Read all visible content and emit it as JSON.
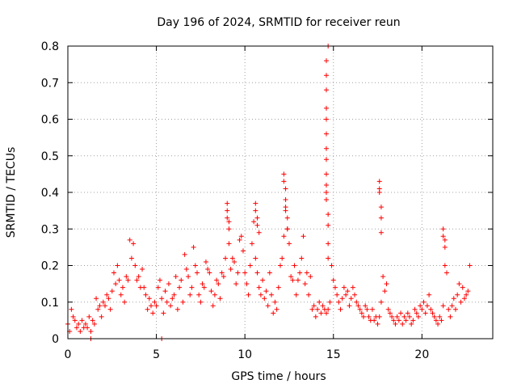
{
  "chart_data": {
    "type": "scatter",
    "title": "Day 196 of 2024, SRMTID for receiver reun",
    "xlabel": "GPS time / hours",
    "ylabel": "SRMTID / TECUs",
    "xlim": [
      0,
      24
    ],
    "ylim": [
      0,
      0.8
    ],
    "x_ticks": [
      0,
      5,
      10,
      15,
      20
    ],
    "x_tick_labels": [
      "0",
      "5",
      "10",
      "15",
      "20"
    ],
    "y_ticks": [
      0,
      0.1,
      0.2,
      0.3,
      0.4,
      0.5,
      0.6,
      0.7,
      0.8
    ],
    "y_tick_labels": [
      "0",
      "0.1",
      "0.2",
      "0.3",
      "0.4",
      "0.5",
      "0.6",
      "0.7",
      "0.8"
    ],
    "grid": true,
    "marker": "+",
    "color": "#ff0000",
    "series": [
      {
        "name": "SRMTID",
        "x": [
          0.0,
          0.1,
          0.2,
          0.3,
          0.4,
          0.5,
          0.6,
          0.7,
          0.8,
          0.9,
          1.0,
          1.1,
          1.2,
          1.3,
          1.4,
          1.5,
          1.6,
          1.7,
          1.8,
          1.9,
          2.0,
          2.1,
          2.2,
          2.3,
          2.4,
          2.5,
          2.6,
          2.7,
          2.8,
          2.9,
          3.0,
          3.1,
          3.2,
          3.3,
          3.4,
          3.5,
          3.6,
          3.7,
          3.8,
          3.9,
          4.0,
          4.1,
          4.2,
          4.3,
          4.4,
          4.5,
          4.6,
          4.7,
          4.8,
          4.9,
          5.0,
          5.1,
          5.2,
          5.3,
          5.4,
          5.5,
          5.6,
          5.7,
          5.8,
          5.9,
          6.0,
          6.1,
          6.2,
          6.3,
          6.4,
          6.5,
          6.6,
          6.7,
          6.8,
          6.9,
          7.0,
          7.1,
          7.2,
          7.3,
          7.4,
          7.5,
          7.6,
          7.7,
          7.8,
          7.9,
          8.0,
          8.1,
          8.2,
          8.3,
          8.4,
          8.5,
          8.6,
          8.7,
          8.8,
          8.9,
          9.0,
          9.1,
          9.2,
          9.3,
          9.4,
          9.5,
          9.6,
          9.7,
          9.8,
          9.9,
          10.0,
          10.1,
          10.2,
          10.3,
          10.4,
          10.5,
          10.6,
          10.7,
          10.8,
          10.9,
          11.0,
          11.1,
          11.2,
          11.3,
          11.4,
          11.5,
          11.6,
          11.7,
          11.8,
          11.9,
          12.0,
          12.1,
          12.2,
          12.3,
          12.4,
          12.5,
          12.6,
          12.7,
          12.8,
          12.9,
          13.0,
          13.1,
          13.2,
          13.3,
          13.4,
          13.5,
          13.6,
          13.7,
          13.8,
          13.9,
          14.0,
          14.1,
          14.2,
          14.3,
          14.4,
          14.5,
          14.6,
          14.7,
          14.8,
          14.9,
          15.0,
          15.1,
          15.2,
          15.3,
          15.4,
          15.5,
          15.6,
          15.7,
          15.8,
          15.9,
          16.0,
          16.1,
          16.2,
          16.3,
          16.4,
          16.5,
          16.6,
          16.7,
          16.8,
          16.9,
          17.0,
          17.1,
          17.2,
          17.3,
          17.4,
          17.5,
          17.6,
          17.7,
          17.8,
          17.9,
          18.0,
          18.1,
          18.2,
          18.3,
          18.4,
          18.5,
          18.6,
          18.7,
          18.8,
          18.9,
          19.0,
          19.1,
          19.2,
          19.3,
          19.4,
          19.5,
          19.6,
          19.7,
          19.8,
          19.9,
          20.0,
          20.1,
          20.2,
          20.3,
          20.4,
          20.5,
          20.6,
          20.7,
          20.8,
          20.9,
          21.0,
          21.1,
          21.2,
          21.3,
          21.4,
          21.5,
          21.6,
          21.7,
          21.8,
          21.9,
          22.0,
          22.1,
          22.2,
          22.3,
          22.4,
          22.5,
          22.6,
          22.7,
          14.6,
          14.6,
          14.6,
          14.6,
          14.6,
          14.6,
          14.6,
          14.6,
          14.6,
          14.6,
          14.6,
          14.6,
          14.7,
          14.7,
          14.7,
          14.7,
          14.7,
          12.2,
          12.2,
          12.3,
          12.3,
          12.3,
          12.4,
          12.4,
          9.0,
          9.0,
          9.1,
          9.1,
          10.6,
          10.6,
          10.7,
          10.7,
          10.8,
          17.6,
          17.6,
          17.6,
          17.7,
          17.7,
          17.7,
          21.2,
          21.2,
          21.3,
          21.3,
          1.3,
          5.3
        ],
        "y": [
          0.04,
          0.02,
          0.08,
          0.06,
          0.05,
          0.03,
          0.04,
          0.02,
          0.05,
          0.03,
          0.04,
          0.03,
          0.06,
          0.02,
          0.05,
          0.04,
          0.11,
          0.08,
          0.09,
          0.06,
          0.1,
          0.09,
          0.12,
          0.11,
          0.08,
          0.13,
          0.18,
          0.15,
          0.2,
          0.16,
          0.12,
          0.14,
          0.1,
          0.17,
          0.16,
          0.27,
          0.22,
          0.26,
          0.2,
          0.16,
          0.17,
          0.14,
          0.19,
          0.14,
          0.12,
          0.08,
          0.11,
          0.09,
          0.07,
          0.1,
          0.09,
          0.14,
          0.16,
          0.11,
          0.07,
          0.13,
          0.1,
          0.15,
          0.09,
          0.11,
          0.12,
          0.17,
          0.08,
          0.14,
          0.16,
          0.1,
          0.23,
          0.19,
          0.17,
          0.12,
          0.14,
          0.25,
          0.2,
          0.18,
          0.12,
          0.1,
          0.15,
          0.14,
          0.21,
          0.19,
          0.18,
          0.13,
          0.09,
          0.12,
          0.16,
          0.15,
          0.11,
          0.18,
          0.17,
          0.22,
          0.33,
          0.26,
          0.19,
          0.22,
          0.21,
          0.15,
          0.18,
          0.27,
          0.28,
          0.24,
          0.18,
          0.15,
          0.12,
          0.2,
          0.26,
          0.32,
          0.22,
          0.18,
          0.14,
          0.12,
          0.16,
          0.11,
          0.13,
          0.09,
          0.18,
          0.12,
          0.07,
          0.1,
          0.08,
          0.14,
          0.2,
          0.22,
          0.28,
          0.36,
          0.3,
          0.26,
          0.17,
          0.16,
          0.2,
          0.12,
          0.16,
          0.18,
          0.22,
          0.28,
          0.15,
          0.18,
          0.12,
          0.17,
          0.08,
          0.09,
          0.06,
          0.08,
          0.1,
          0.07,
          0.09,
          0.08,
          0.07,
          0.08,
          0.1,
          0.2,
          0.16,
          0.14,
          0.12,
          0.1,
          0.08,
          0.11,
          0.14,
          0.12,
          0.13,
          0.09,
          0.11,
          0.14,
          0.12,
          0.1,
          0.09,
          0.08,
          0.07,
          0.06,
          0.09,
          0.08,
          0.06,
          0.05,
          0.08,
          0.05,
          0.06,
          0.04,
          0.06,
          0.1,
          0.17,
          0.13,
          0.15,
          0.08,
          0.07,
          0.06,
          0.05,
          0.04,
          0.06,
          0.05,
          0.07,
          0.04,
          0.06,
          0.05,
          0.07,
          0.06,
          0.04,
          0.05,
          0.08,
          0.07,
          0.06,
          0.09,
          0.08,
          0.1,
          0.07,
          0.09,
          0.12,
          0.08,
          0.07,
          0.06,
          0.05,
          0.04,
          0.06,
          0.05,
          0.09,
          0.2,
          0.18,
          0.08,
          0.06,
          0.09,
          0.11,
          0.08,
          0.12,
          0.15,
          0.1,
          0.14,
          0.11,
          0.12,
          0.13,
          0.2,
          0.76,
          0.72,
          0.68,
          0.63,
          0.6,
          0.56,
          0.52,
          0.49,
          0.45,
          0.42,
          0.4,
          0.38,
          0.8,
          0.34,
          0.31,
          0.26,
          0.22,
          0.45,
          0.43,
          0.41,
          0.38,
          0.35,
          0.33,
          0.3,
          0.37,
          0.35,
          0.32,
          0.3,
          0.37,
          0.35,
          0.33,
          0.31,
          0.29,
          0.43,
          0.41,
          0.4,
          0.36,
          0.33,
          0.29,
          0.3,
          0.28,
          0.27,
          0.25,
          0.0,
          0.0
        ]
      }
    ]
  }
}
